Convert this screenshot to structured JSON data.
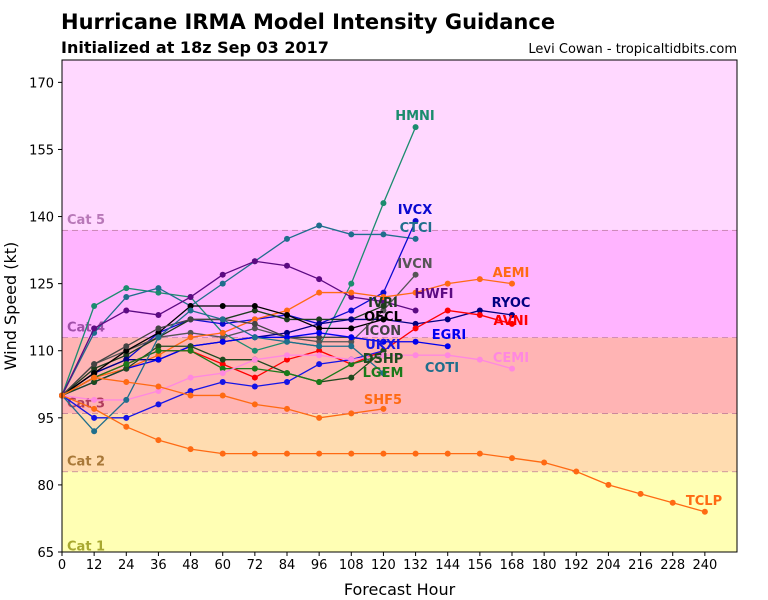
{
  "header": {
    "title": "Hurricane IRMA Model Intensity Guidance",
    "subtitle": "Initialized at 18z Sep 03 2017",
    "credit": "Levi Cowan - tropicaltidbits.com"
  },
  "chart_data": {
    "type": "line",
    "title": "Hurricane IRMA Model Intensity Guidance",
    "xlabel": "Forecast Hour",
    "ylabel": "Wind Speed (kt)",
    "xlim": [
      0,
      252
    ],
    "ylim": [
      65,
      175
    ],
    "xticks": [
      0,
      12,
      24,
      36,
      48,
      60,
      72,
      84,
      96,
      108,
      120,
      132,
      144,
      156,
      168,
      180,
      192,
      204,
      216,
      228,
      240
    ],
    "yticks": [
      65,
      80,
      95,
      110,
      125,
      140,
      155,
      170
    ],
    "grid": false,
    "bands": [
      {
        "label": "Cat 1",
        "from": 64,
        "to": 83,
        "color": "#ffffb4",
        "label_color": "#a8a830"
      },
      {
        "label": "Cat 2",
        "from": 83,
        "to": 96,
        "color": "#ffdcb0",
        "label_color": "#a87838"
      },
      {
        "label": "Cat 3",
        "from": 96,
        "to": 113,
        "color": "#ffb4b4",
        "label_color": "#b03c5c"
      },
      {
        "label": "Cat 4",
        "from": 113,
        "to": 137,
        "color": "#ffb4ff",
        "label_color": "#a050a8"
      },
      {
        "label": "Cat 5",
        "from": 137,
        "to": 175,
        "color": "#ffd8ff",
        "label_color": "#b878b8"
      }
    ],
    "series": [
      {
        "name": "HMNI",
        "color": "#1b8c6e",
        "x": [
          0,
          12,
          24,
          36,
          48,
          60,
          72,
          84,
          96,
          108,
          120,
          132
        ],
        "values": [
          100,
          120,
          124,
          123,
          122,
          114,
          110,
          112,
          111,
          125,
          143,
          160
        ]
      },
      {
        "name": "CTCI",
        "color": "#1f6e8c",
        "x": [
          0,
          12,
          24,
          36,
          48,
          60,
          72,
          84,
          96,
          108,
          120,
          132
        ],
        "values": [
          100,
          114,
          122,
          124,
          120,
          125,
          130,
          135,
          138,
          136,
          136,
          135
        ]
      },
      {
        "name": "HWFI",
        "color": "#5c0a82",
        "x": [
          0,
          12,
          24,
          36,
          48,
          60,
          72,
          84,
          96,
          108,
          120,
          132
        ],
        "values": [
          100,
          115,
          119,
          118,
          122,
          127,
          130,
          129,
          126,
          122,
          121,
          119
        ]
      },
      {
        "name": "IVCX",
        "color": "#0a0ad0",
        "x": [
          0,
          12,
          24,
          36,
          48,
          60,
          72,
          84,
          96,
          108,
          120,
          132
        ],
        "values": [
          100,
          105,
          108,
          114,
          117,
          116,
          117,
          118,
          116,
          119,
          123,
          139
        ]
      },
      {
        "name": "IVCN",
        "color": "#555555",
        "x": [
          0,
          12,
          24,
          36,
          48,
          60,
          72,
          84,
          96,
          108,
          120,
          132
        ],
        "values": [
          100,
          107,
          110,
          113,
          114,
          113,
          115,
          113,
          112,
          112,
          119,
          127
        ]
      },
      {
        "name": "AEMI",
        "color": "#ff6a13",
        "x": [
          0,
          12,
          24,
          36,
          48,
          60,
          72,
          84,
          96,
          108,
          120,
          132,
          144,
          156,
          168
        ],
        "values": [
          100,
          104,
          106,
          109,
          113,
          114,
          117,
          119,
          123,
          123,
          122,
          123,
          125,
          126,
          125
        ]
      },
      {
        "name": "IVRI",
        "color": "#1e3c1e",
        "x": [
          0,
          12,
          24,
          36,
          48,
          60,
          72,
          84,
          96,
          108,
          120
        ],
        "values": [
          100,
          106,
          109,
          113,
          117,
          117,
          119,
          117,
          117,
          117,
          120
        ]
      },
      {
        "name": "RYOC",
        "color": "#000080",
        "x": [
          0,
          12,
          24,
          36,
          48,
          60,
          72,
          84,
          96,
          108,
          120,
          132,
          144,
          156,
          168
        ],
        "values": [
          100,
          105,
          108,
          108,
          111,
          112,
          113,
          114,
          116,
          117,
          117,
          116,
          117,
          119,
          118
        ]
      },
      {
        "name": "AVNI",
        "color": "#ff0000",
        "x": [
          0,
          12,
          24,
          36,
          48,
          60,
          72,
          84,
          96,
          108,
          120,
          132,
          144,
          156,
          168
        ],
        "values": [
          100,
          104,
          107,
          110,
          110,
          107,
          104,
          108,
          110,
          107,
          110,
          115,
          119,
          118,
          116
        ]
      },
      {
        "name": "OFCL",
        "color": "#000000",
        "x": [
          0,
          12,
          24,
          36,
          48,
          60,
          72,
          84,
          96,
          108,
          120
        ],
        "values": [
          100,
          105,
          110,
          114,
          120,
          120,
          120,
          118,
          115,
          115,
          117
        ]
      },
      {
        "name": "ICON",
        "color": "#444444",
        "x": [
          0,
          12,
          24,
          36,
          48,
          60,
          72,
          84,
          96,
          108,
          120
        ],
        "values": [
          100,
          107,
          111,
          115,
          117,
          117,
          116,
          113,
          113,
          113,
          112
        ]
      },
      {
        "name": "EGRI",
        "color": "#0000ee",
        "x": [
          0,
          12,
          24,
          36,
          48,
          60,
          72,
          84,
          96,
          108,
          120,
          132,
          144
        ],
        "values": [
          100,
          103,
          106,
          108,
          111,
          112,
          113,
          113,
          114,
          113,
          112,
          112,
          111
        ]
      },
      {
        "name": "UKXI",
        "color": "#1414e6",
        "x": [
          0,
          12,
          24,
          36,
          48,
          60,
          72,
          84,
          96,
          108,
          120
        ],
        "values": [
          100,
          95,
          95,
          98,
          101,
          103,
          102,
          103,
          107,
          108,
          110
        ]
      },
      {
        "name": "DSHP",
        "color": "#1e4a1e",
        "x": [
          0,
          12,
          24,
          36,
          48,
          60,
          72,
          84,
          96,
          108,
          120
        ],
        "values": [
          100,
          103,
          106,
          111,
          111,
          108,
          108,
          105,
          103,
          104,
          110
        ]
      },
      {
        "name": "LGEM",
        "color": "#1a7a1a",
        "x": [
          0,
          12,
          24,
          36,
          48,
          60,
          72,
          84,
          96,
          108,
          120
        ],
        "values": [
          100,
          104,
          107,
          110,
          110,
          106,
          106,
          105,
          103,
          107,
          109
        ]
      },
      {
        "name": "CEMI",
        "color": "#ff88e0",
        "x": [
          0,
          12,
          24,
          36,
          48,
          60,
          72,
          84,
          96,
          108,
          120,
          132,
          144,
          156,
          168
        ],
        "values": [
          100,
          99,
          99,
          101,
          104,
          105,
          108,
          109,
          109,
          108,
          109,
          109,
          109,
          108,
          106
        ]
      },
      {
        "name": "COTI",
        "color": "#1f6e8c",
        "x": [
          0,
          12,
          24,
          36,
          48,
          60,
          72,
          84,
          96,
          108,
          120
        ],
        "values": [
          100,
          92,
          99,
          113,
          119,
          117,
          113,
          112,
          111,
          111,
          105
        ]
      },
      {
        "name": "SHF5",
        "color": "#ff6a13",
        "x": [
          0,
          12,
          24,
          36,
          48,
          60,
          72,
          84,
          96,
          108,
          120
        ],
        "values": [
          100,
          104,
          103,
          102,
          100,
          100,
          98,
          97,
          95,
          96,
          97
        ]
      },
      {
        "name": "TCLP",
        "color": "#ff6a13",
        "x": [
          0,
          12,
          24,
          36,
          48,
          60,
          72,
          84,
          96,
          108,
          120,
          132,
          144,
          156,
          168,
          180,
          192,
          204,
          216,
          228,
          240
        ],
        "values": [
          100,
          97,
          93,
          90,
          88,
          87,
          87,
          87,
          87,
          87,
          87,
          87,
          87,
          87,
          86,
          85,
          83,
          80,
          78,
          76,
          74
        ]
      }
    ]
  }
}
